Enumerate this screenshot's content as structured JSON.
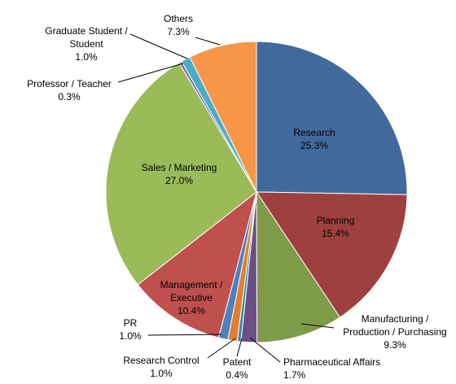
{
  "chart_data": {
    "type": "pie",
    "title": "",
    "unit": "%",
    "start_angle_deg": 0,
    "direction": "clockwise",
    "slices": [
      {
        "name": "Research",
        "label_lines": [
          "Research"
        ],
        "value": 25.3,
        "value_label": "25.3%",
        "color": "#41699C",
        "label_position": "inside"
      },
      {
        "name": "Planning",
        "label_lines": [
          "Planning"
        ],
        "value": 15.4,
        "value_label": "15.4%",
        "color": "#9E413E",
        "label_position": "inside"
      },
      {
        "name": "Manufacturing / Production / Purchasing",
        "label_lines": [
          "Manufacturing /",
          "Production / Purchasing"
        ],
        "value": 9.3,
        "value_label": "9.3%",
        "color": "#7F9A48",
        "label_position": "outside"
      },
      {
        "name": "Pharmaceutical Affairs",
        "label_lines": [
          "Pharmaceutical Affairs"
        ],
        "value": 1.7,
        "value_label": "1.7%",
        "color": "#6A4F86",
        "label_position": "outside"
      },
      {
        "name": "Patent",
        "label_lines": [
          "Patent"
        ],
        "value": 0.4,
        "value_label": "0.4%",
        "color": "#3A8FA6",
        "label_position": "outside"
      },
      {
        "name": "Research Control",
        "label_lines": [
          "Research Control"
        ],
        "value": 1.0,
        "value_label": "1.0%",
        "color": "#E07F30",
        "label_position": "outside"
      },
      {
        "name": "PR",
        "label_lines": [
          "PR"
        ],
        "value": 1.0,
        "value_label": "1.0%",
        "color": "#4F81BD",
        "label_position": "outside"
      },
      {
        "name": "Management / Executive",
        "label_lines": [
          "Management /",
          "Executive"
        ],
        "value": 10.4,
        "value_label": "10.4%",
        "color": "#C0504D",
        "label_position": "inside"
      },
      {
        "name": "Sales / Marketing",
        "label_lines": [
          "Sales / Marketing"
        ],
        "value": 27.0,
        "value_label": "27.0%",
        "color": "#9BBB59",
        "label_position": "inside"
      },
      {
        "name": "Professor / Teacher",
        "label_lines": [
          "Professor / Teacher"
        ],
        "value": 0.3,
        "value_label": "0.3%",
        "color": "#8064A2",
        "label_position": "outside"
      },
      {
        "name": "Graduate Student / Student",
        "label_lines": [
          "Graduate Student /",
          "Student"
        ],
        "value": 1.0,
        "value_label": "1.0%",
        "color": "#4BACC6",
        "label_position": "outside"
      },
      {
        "name": "Others",
        "label_lines": [
          "Others"
        ],
        "value": 7.3,
        "value_label": "7.3%",
        "color": "#F79646",
        "label_position": "outside"
      }
    ]
  }
}
